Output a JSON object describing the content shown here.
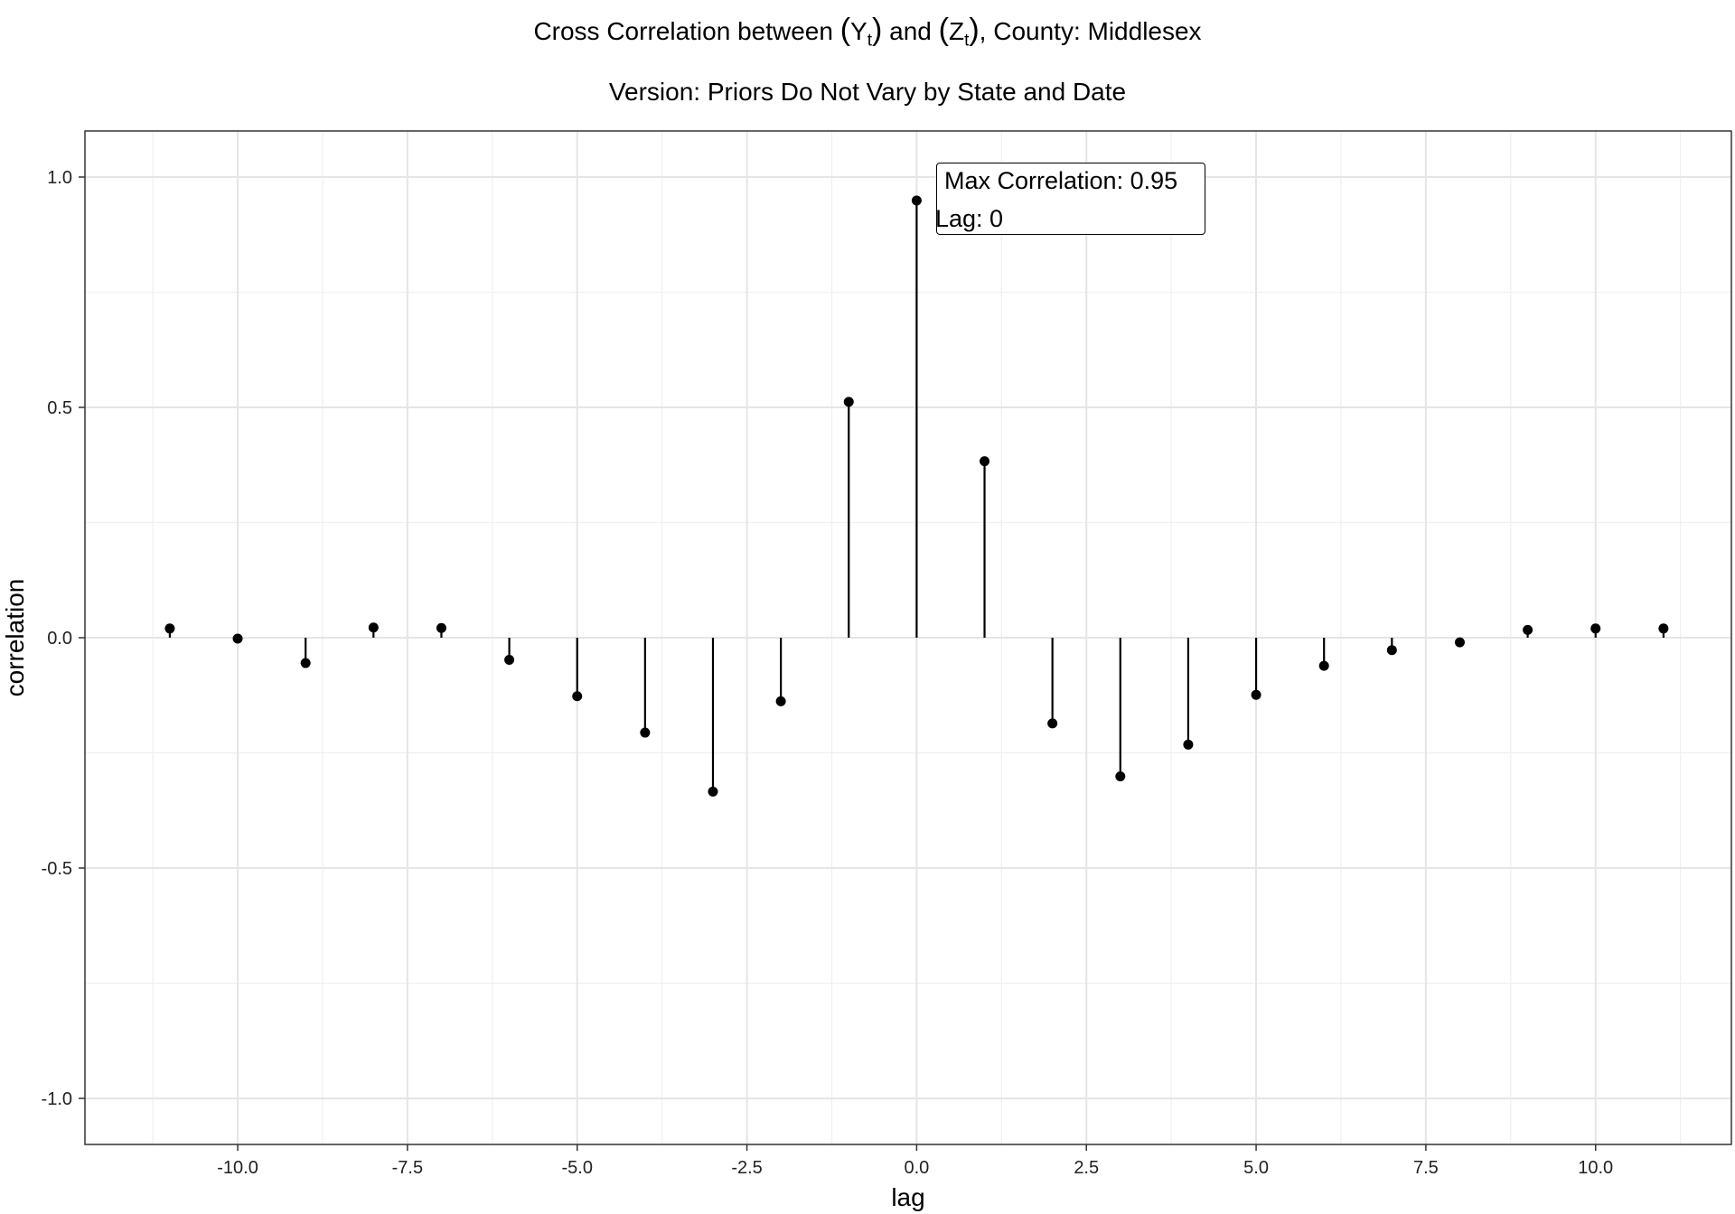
{
  "chart_data": {
    "type": "stem",
    "title": {
      "prefix": "Cross Correlation between ",
      "y_var": "Y",
      "y_sub": "t",
      "mid": " and ",
      "z_var": "Z",
      "z_sub": "t",
      "suffix": ", County: Middlesex"
    },
    "subtitle": "Version: Priors Do Not Vary by State and Date",
    "xlabel": "lag",
    "ylabel": "correlation",
    "xlim": [
      -12.25,
      12.0
    ],
    "ylim": [
      -1.1,
      1.1
    ],
    "x_ticks": [
      -10.0,
      -7.5,
      -5.0,
      -2.5,
      0.0,
      2.5,
      5.0,
      7.5,
      10.0
    ],
    "x_tick_labels": [
      "-10.0",
      "-7.5",
      "-5.0",
      "-2.5",
      "0.0",
      "2.5",
      "5.0",
      "7.5",
      "10.0"
    ],
    "y_ticks": [
      -1.0,
      -0.5,
      0.0,
      0.5,
      1.0
    ],
    "y_tick_labels": [
      "-1.0",
      "-0.5",
      "0.0",
      "0.5",
      "1.0"
    ],
    "grid": true,
    "x": [
      -11,
      -10,
      -9,
      -8,
      -7,
      -6,
      -5,
      -4,
      -3,
      -2,
      -1,
      0,
      1,
      2,
      3,
      4,
      5,
      6,
      7,
      8,
      9,
      10,
      11
    ],
    "values": [
      0.02,
      -0.002,
      -0.055,
      0.022,
      0.021,
      -0.048,
      -0.127,
      -0.206,
      -0.334,
      -0.138,
      0.512,
      0.949,
      0.383,
      -0.186,
      -0.301,
      -0.232,
      -0.124,
      -0.061,
      -0.027,
      -0.01,
      0.017,
      0.02,
      0.02
    ],
    "annotation": {
      "line1": "Max Correlation: 0.95",
      "line2": "Lag: 0"
    }
  }
}
